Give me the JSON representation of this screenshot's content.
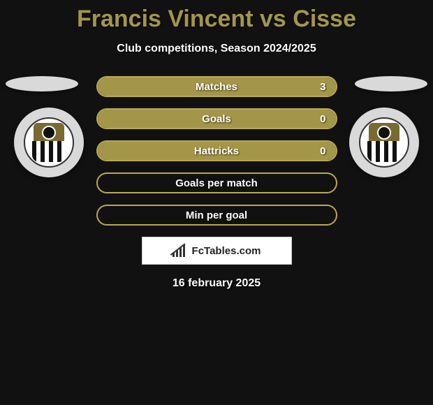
{
  "title": "Francis Vincent vs Cisse",
  "subtitle": "Club competitions, Season 2024/2025",
  "date": "16 february 2025",
  "brand": "FcTables.com",
  "colors": {
    "accent": "#a49649",
    "accent_border": "#b9a94f",
    "background": "#111111",
    "text": "#ffffff",
    "ellipse": "#d9d9d9"
  },
  "stats": [
    {
      "label": "Matches",
      "value": "3",
      "fill_percent": 100
    },
    {
      "label": "Goals",
      "value": "0",
      "fill_percent": 100
    },
    {
      "label": "Hattricks",
      "value": "0",
      "fill_percent": 100
    },
    {
      "label": "Goals per match",
      "value": "",
      "fill_percent": 0
    },
    {
      "label": "Min per goal",
      "value": "",
      "fill_percent": 0
    }
  ]
}
